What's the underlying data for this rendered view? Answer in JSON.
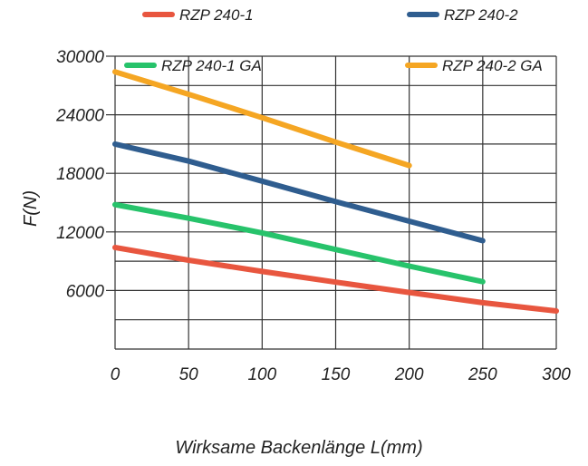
{
  "chart_data": {
    "type": "line",
    "xlabel": "Wirksame Backenlänge L(mm)",
    "ylabel": "F(N)",
    "xlim": [
      0,
      300
    ],
    "ylim": [
      0,
      30000
    ],
    "x_ticks": [
      "0",
      "50",
      "100",
      "150",
      "200",
      "250",
      "300"
    ],
    "y_ticks": [
      "6000",
      "12000",
      "18000",
      "24000",
      "30000"
    ],
    "grid": true,
    "legend_position": "top",
    "series": [
      {
        "name": "RZP 240-1",
        "color": "#e8563f",
        "points": [
          [
            0,
            10400
          ],
          [
            50,
            9100
          ],
          [
            100,
            7950
          ],
          [
            150,
            6850
          ],
          [
            200,
            5800
          ],
          [
            250,
            4750
          ],
          [
            300,
            3900
          ]
        ]
      },
      {
        "name": "RZP 240-2",
        "color": "#2f5d8f",
        "points": [
          [
            0,
            21000
          ],
          [
            50,
            19250
          ],
          [
            100,
            17200
          ],
          [
            150,
            15100
          ],
          [
            200,
            13100
          ],
          [
            250,
            11100
          ]
        ]
      },
      {
        "name": "RZP 240-1 GA",
        "color": "#27c36b",
        "points": [
          [
            0,
            14800
          ],
          [
            50,
            13400
          ],
          [
            100,
            11900
          ],
          [
            150,
            10200
          ],
          [
            200,
            8500
          ],
          [
            250,
            6900
          ]
        ]
      },
      {
        "name": "RZP 240-2 GA",
        "color": "#f5a623",
        "points": [
          [
            0,
            28400
          ],
          [
            50,
            26100
          ],
          [
            100,
            23700
          ],
          [
            150,
            21200
          ],
          [
            200,
            18800
          ]
        ]
      }
    ]
  }
}
